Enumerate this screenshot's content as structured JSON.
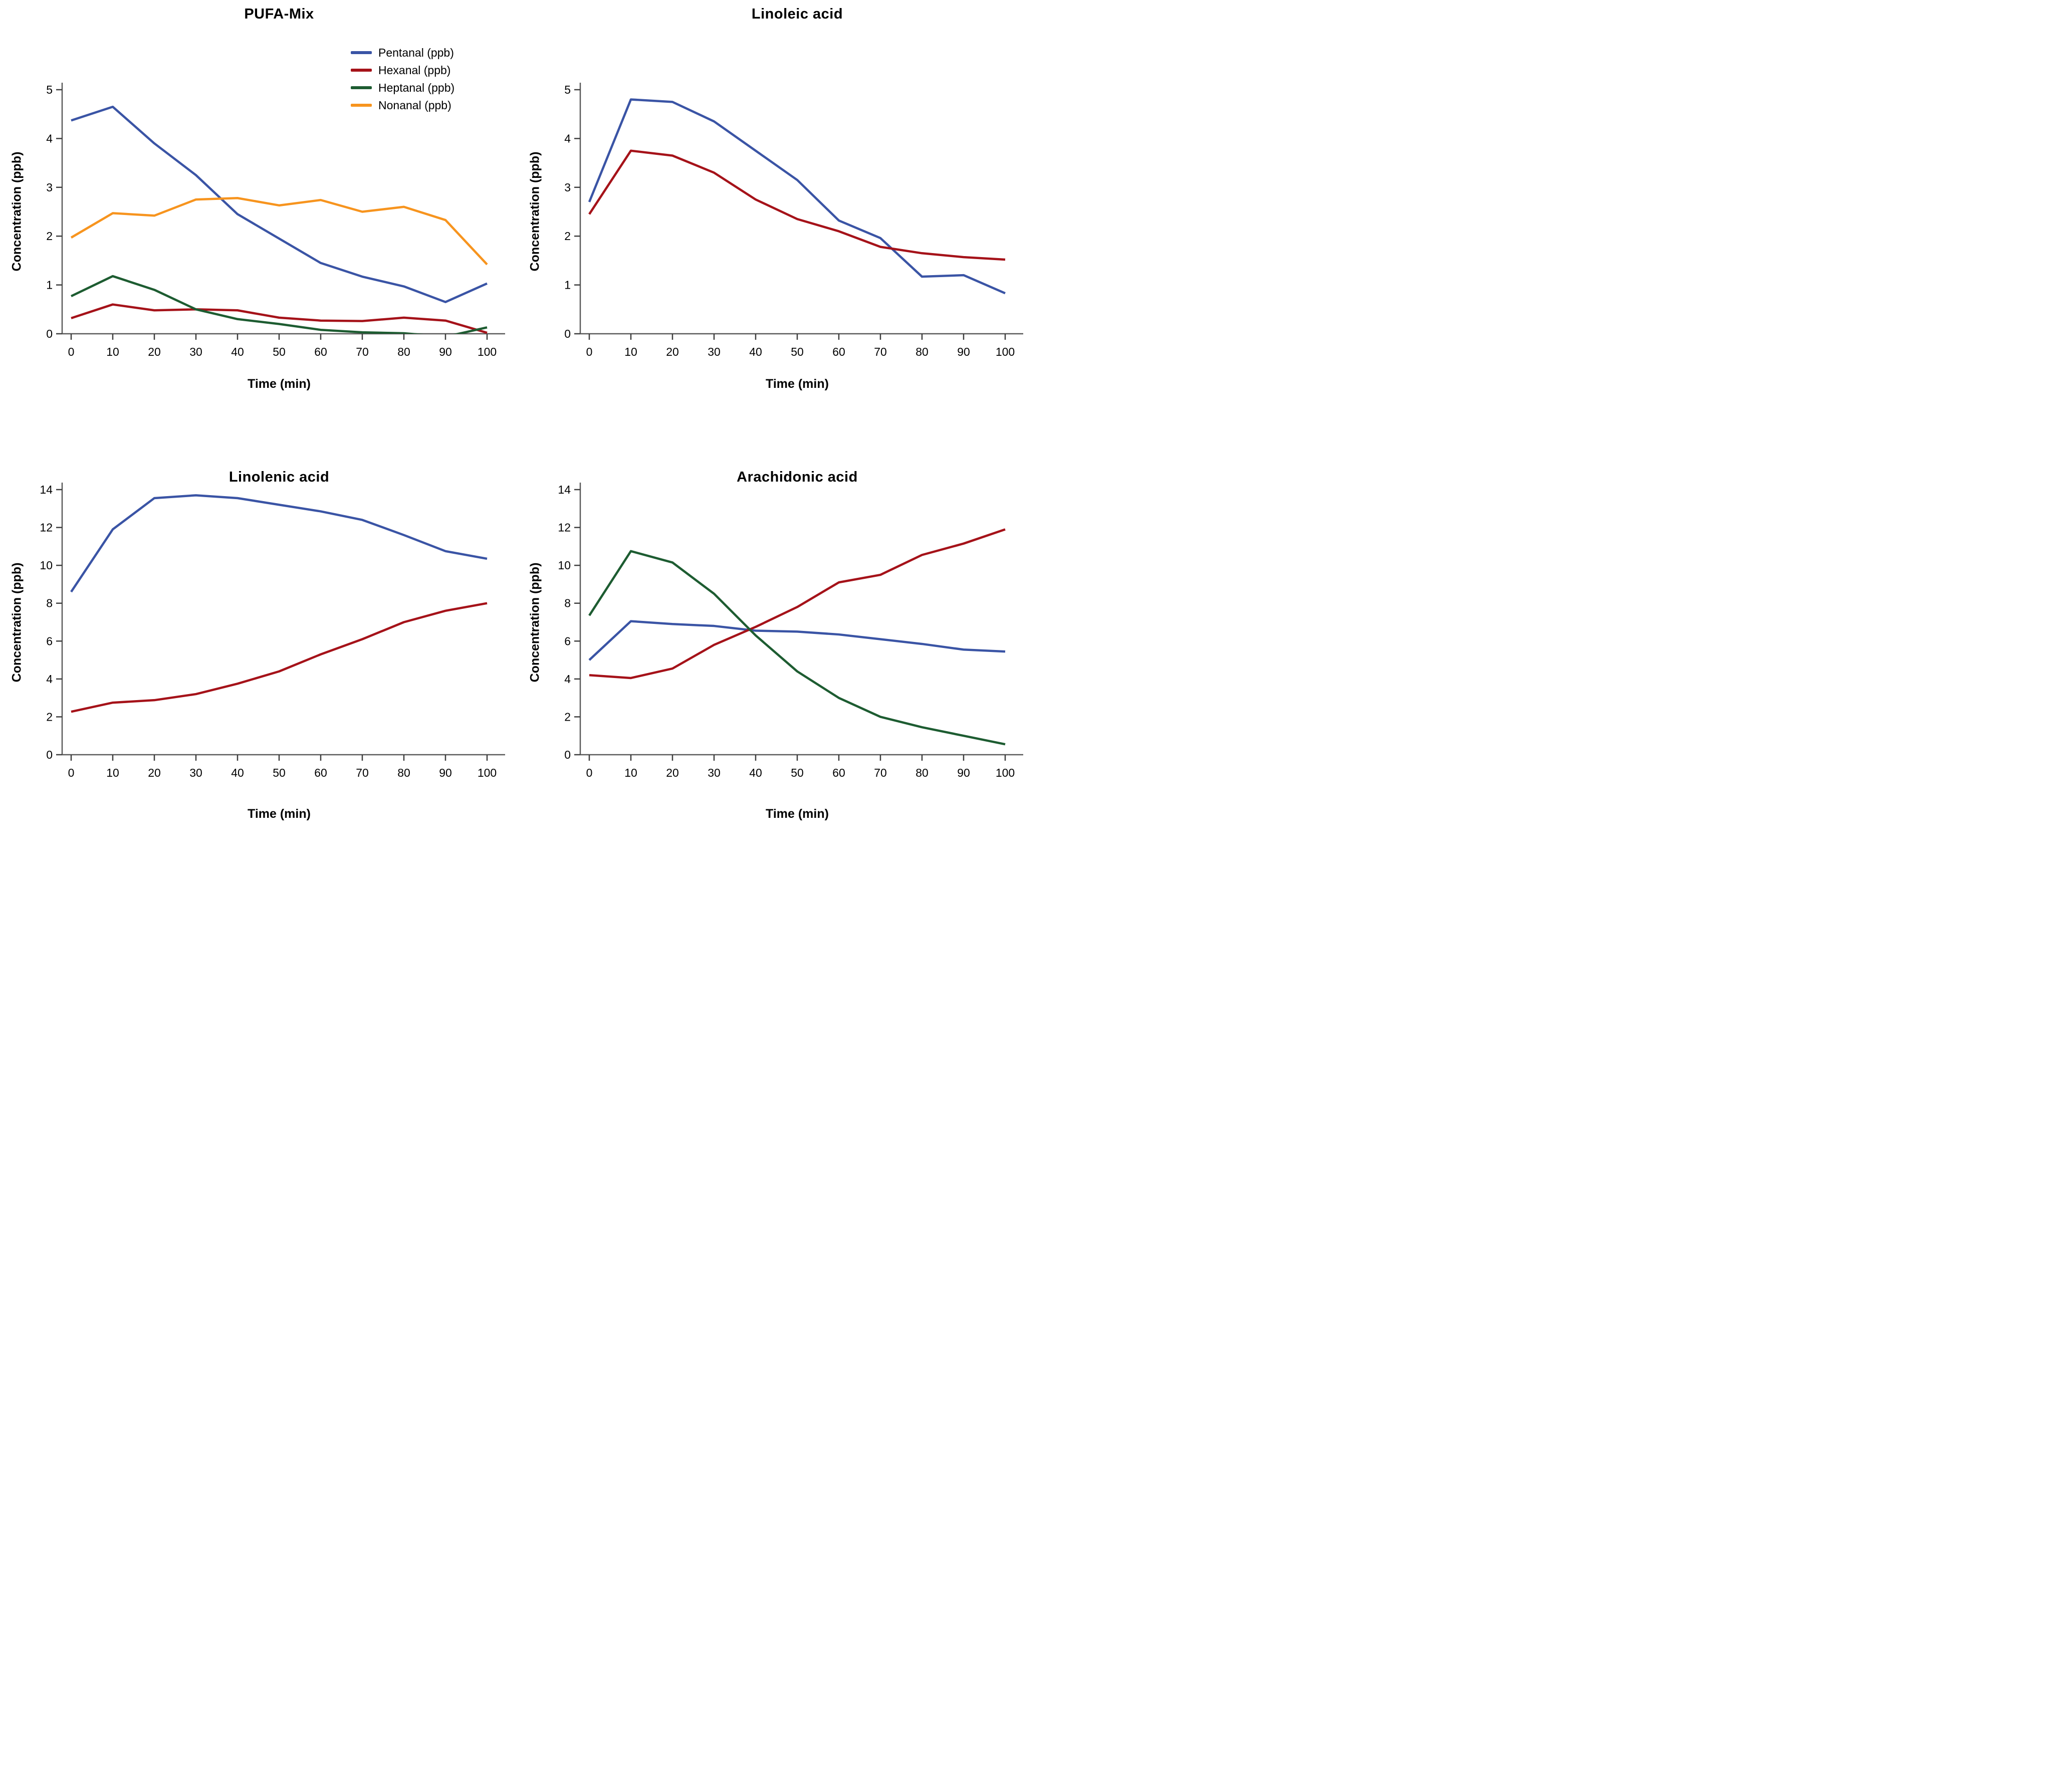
{
  "figure_title": "",
  "axis_colors": {
    "axis_line": "#5a5a5a",
    "tick_mark": "#3f3f3f",
    "tick_text": "#000000"
  },
  "chart_data": [
    {
      "type": "line",
      "title": "PUFA-Mix",
      "xlabel": "Time (min)",
      "ylabel": "Concentration (ppb)",
      "x": [
        0,
        10,
        20,
        30,
        40,
        50,
        60,
        70,
        80,
        90,
        100
      ],
      "xticks": [
        0,
        10,
        20,
        30,
        40,
        50,
        60,
        70,
        80,
        90,
        100
      ],
      "xlim": [
        0,
        100
      ],
      "ylim": [
        0,
        5
      ],
      "yticks": [
        0,
        1,
        2,
        3,
        4,
        5
      ],
      "grid": false,
      "legend_position": "top-right-inside",
      "series": [
        {
          "name": "Pentanal (ppb)",
          "color": "#3a54a5",
          "values": [
            4.37,
            4.65,
            3.9,
            3.25,
            2.45,
            1.95,
            1.45,
            1.17,
            0.97,
            0.65,
            1.03
          ]
        },
        {
          "name": "Hexanal (ppb)",
          "color": "#a51219",
          "values": [
            0.32,
            0.6,
            0.48,
            0.5,
            0.48,
            0.33,
            0.27,
            0.26,
            0.33,
            0.27,
            0.02
          ]
        },
        {
          "name": "Heptanal (ppb)",
          "color": "#1d5c31",
          "values": [
            0.77,
            1.18,
            0.9,
            0.5,
            0.3,
            0.2,
            0.08,
            0.03,
            0.01,
            -0.06,
            0.13
          ]
        },
        {
          "name": "Nonanal (ppb)",
          "color": "#f7941e",
          "values": [
            1.97,
            2.47,
            2.42,
            2.75,
            2.78,
            2.63,
            2.74,
            2.5,
            2.6,
            2.33,
            1.42
          ]
        }
      ]
    },
    {
      "type": "line",
      "title": "Linoleic acid",
      "xlabel": "Time (min)",
      "ylabel": "Concentration (ppb)",
      "x": [
        0,
        10,
        20,
        30,
        40,
        50,
        60,
        70,
        80,
        90,
        100
      ],
      "xticks": [
        0,
        10,
        20,
        30,
        40,
        50,
        60,
        70,
        80,
        90,
        100
      ],
      "xlim": [
        0,
        100
      ],
      "ylim": [
        0,
        5
      ],
      "yticks": [
        0,
        1,
        2,
        3,
        4,
        5
      ],
      "grid": false,
      "legend_position": "none",
      "series": [
        {
          "name": "Pentanal (ppb)",
          "color": "#3a54a5",
          "values": [
            2.7,
            4.8,
            4.75,
            4.35,
            3.75,
            3.15,
            2.32,
            1.96,
            1.17,
            1.2,
            0.83
          ]
        },
        {
          "name": "Hexanal (ppb)",
          "color": "#a51219",
          "values": [
            2.45,
            3.75,
            3.65,
            3.3,
            2.75,
            2.35,
            2.1,
            1.78,
            1.65,
            1.57,
            1.52
          ]
        }
      ]
    },
    {
      "type": "line",
      "title": "Linolenic acid",
      "xlabel": "Time (min)",
      "ylabel": "Concentration (ppb)",
      "x": [
        0,
        10,
        20,
        30,
        40,
        50,
        60,
        70,
        80,
        90,
        100
      ],
      "xticks": [
        0,
        10,
        20,
        30,
        40,
        50,
        60,
        70,
        80,
        90,
        100
      ],
      "xlim": [
        0,
        100
      ],
      "ylim": [
        0,
        14
      ],
      "yticks": [
        0,
        2,
        4,
        6,
        8,
        10,
        12,
        14
      ],
      "grid": false,
      "legend_position": "none",
      "series": [
        {
          "name": "Pentanal (ppb)",
          "color": "#3a54a5",
          "values": [
            8.6,
            11.9,
            13.55,
            13.7,
            13.55,
            13.2,
            12.85,
            12.4,
            11.6,
            10.75,
            10.35
          ]
        },
        {
          "name": "Hexanal (ppb)",
          "color": "#a51219",
          "values": [
            2.27,
            2.75,
            2.88,
            3.2,
            3.75,
            4.4,
            5.3,
            6.1,
            7.0,
            7.6,
            8.0
          ]
        }
      ]
    },
    {
      "type": "line",
      "title": "Arachidonic acid",
      "xlabel": "Time (min)",
      "ylabel": "Concentration (ppb)",
      "x": [
        0,
        10,
        20,
        30,
        40,
        50,
        60,
        70,
        80,
        90,
        100
      ],
      "xticks": [
        0,
        10,
        20,
        30,
        40,
        50,
        60,
        70,
        80,
        90,
        100
      ],
      "xlim": [
        0,
        100
      ],
      "ylim": [
        0,
        14
      ],
      "yticks": [
        0,
        2,
        4,
        6,
        8,
        10,
        12,
        14
      ],
      "grid": false,
      "legend_position": "none",
      "series": [
        {
          "name": "Pentanal (ppb)",
          "color": "#3a54a5",
          "values": [
            5.0,
            7.05,
            6.9,
            6.8,
            6.55,
            6.5,
            6.35,
            6.1,
            5.85,
            5.55,
            5.45
          ]
        },
        {
          "name": "Hexanal (ppb)",
          "color": "#a51219",
          "values": [
            4.2,
            4.05,
            4.55,
            5.8,
            6.75,
            7.8,
            9.1,
            9.5,
            10.55,
            11.15,
            11.9
          ]
        },
        {
          "name": "Heptanal (ppb)",
          "color": "#1d5c31",
          "values": [
            7.35,
            10.75,
            10.15,
            8.5,
            6.3,
            4.4,
            3.0,
            2.0,
            1.45,
            1.0,
            0.55
          ]
        }
      ]
    }
  ]
}
